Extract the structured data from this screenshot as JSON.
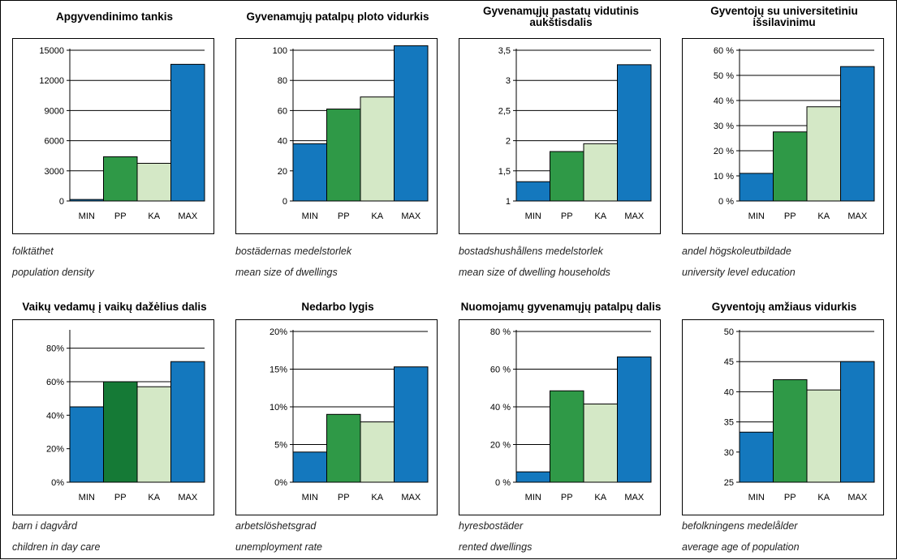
{
  "colors": {
    "min": "#1478be",
    "pp": "#2f9947",
    "pp_dark": "#157a36",
    "ka": "#d4e8c6",
    "max": "#1478be"
  },
  "charts": [
    {
      "title_lines": [
        "Apgyvendinimo tankis"
      ],
      "caption_sv": "folktäthet",
      "caption_en": "population density",
      "chart_data": {
        "type": "bar",
        "categories": [
          "MIN",
          "PP",
          "KA",
          "MAX"
        ],
        "values": [
          150,
          4400,
          3750,
          13600
        ],
        "ylim": [
          0,
          15000
        ],
        "yticks": [
          0,
          3000,
          6000,
          9000,
          12000,
          15000
        ],
        "ytick_labels": [
          "0",
          "3000",
          "6000",
          "9000",
          "12000",
          "15000"
        ],
        "grid": true
      }
    },
    {
      "title_lines": [
        "Gyvenamųjų patalpų ploto vidurkis"
      ],
      "caption_sv": "bostädernas medelstorlek",
      "caption_en": "mean size of dwellings",
      "chart_data": {
        "type": "bar",
        "categories": [
          "MIN",
          "PP",
          "KA",
          "MAX"
        ],
        "values": [
          38,
          61,
          69,
          103
        ],
        "ylim": [
          0,
          100
        ],
        "yticks": [
          0,
          20,
          40,
          60,
          80,
          100
        ],
        "ytick_labels": [
          "0",
          "20",
          "40",
          "60",
          "80",
          "100"
        ],
        "grid": true
      }
    },
    {
      "title_lines": [
        "Gyvenamųjų pastatų vidutinis",
        "aukštisdalis"
      ],
      "caption_sv": "bostadshushållens medelstorlek",
      "caption_en": "mean size of dwelling households",
      "chart_data": {
        "type": "bar",
        "categories": [
          "MIN",
          "PP",
          "KA",
          "MAX"
        ],
        "values": [
          1.32,
          1.82,
          1.95,
          3.26
        ],
        "ylim": [
          1,
          3.5
        ],
        "yticks": [
          1,
          1.5,
          2,
          2.5,
          3,
          3.5
        ],
        "ytick_labels": [
          "1",
          "1,5",
          "2",
          "2,5",
          "3",
          "3,5"
        ],
        "grid": true
      }
    },
    {
      "title_lines": [
        "Gyventojų su universitetiniu",
        "išsilavinimu"
      ],
      "caption_sv": "andel högskoleutbildade",
      "caption_en": "university level education",
      "chart_data": {
        "type": "bar",
        "categories": [
          "MIN",
          "PP",
          "KA",
          "MAX"
        ],
        "values": [
          11,
          27.5,
          37.5,
          53.5
        ],
        "ylim": [
          0,
          60
        ],
        "yticks": [
          0,
          10,
          20,
          30,
          40,
          50,
          60
        ],
        "ytick_labels": [
          "0 %",
          "10 %",
          "20 %",
          "30 %",
          "40 %",
          "50 %",
          "60 %"
        ],
        "grid": true
      }
    },
    {
      "title_lines": [
        "Vaikų vedamų į vaikų dažėlius dalis"
      ],
      "caption_sv": "barn i dagvård",
      "caption_en": "children in day care",
      "chart_data": {
        "type": "bar",
        "categories": [
          "MIN",
          "PP",
          "KA",
          "MAX"
        ],
        "values": [
          45,
          60,
          57,
          72
        ],
        "ylim": [
          0,
          90
        ],
        "yticks": [
          0,
          20,
          40,
          60,
          80
        ],
        "ytick_labels": [
          "0%",
          "20%",
          "40%",
          "60%",
          "80%"
        ],
        "grid": true,
        "pp_dark": true
      }
    },
    {
      "title_lines": [
        "Nedarbo lygis"
      ],
      "caption_sv": "arbetslöshetsgrad",
      "caption_en": "unemployment rate",
      "chart_data": {
        "type": "bar",
        "categories": [
          "MIN",
          "PP",
          "KA",
          "MAX"
        ],
        "values": [
          4,
          9,
          8,
          15.3
        ],
        "ylim": [
          0,
          20
        ],
        "yticks": [
          0,
          5,
          10,
          15,
          20
        ],
        "ytick_labels": [
          "0%",
          "5%",
          "10%",
          "15%",
          "20%"
        ],
        "grid": true
      }
    },
    {
      "title_lines": [
        "Nuomojamų gyvenamųjų patalpų dalis"
      ],
      "caption_sv": "hyresbostäder",
      "caption_en": "rented dwellings",
      "chart_data": {
        "type": "bar",
        "categories": [
          "MIN",
          "PP",
          "KA",
          "MAX"
        ],
        "values": [
          5.5,
          48.5,
          41.5,
          66.5
        ],
        "ylim": [
          0,
          80
        ],
        "yticks": [
          0,
          20,
          40,
          60,
          80
        ],
        "ytick_labels": [
          "0 %",
          "20 %",
          "40 %",
          "60 %",
          "80 %"
        ],
        "grid": true
      }
    },
    {
      "title_lines": [
        "Gyventojų amžiaus vidurkis"
      ],
      "caption_sv": "befolkningens medelålder",
      "caption_en": "average age of population",
      "chart_data": {
        "type": "bar",
        "categories": [
          "MIN",
          "PP",
          "KA",
          "MAX"
        ],
        "values": [
          33.3,
          42,
          40.3,
          45
        ],
        "ylim": [
          25,
          50
        ],
        "yticks": [
          25,
          30,
          35,
          40,
          45,
          50
        ],
        "ytick_labels": [
          "25",
          "30",
          "35",
          "40",
          "45",
          "50"
        ],
        "grid": true
      }
    }
  ]
}
